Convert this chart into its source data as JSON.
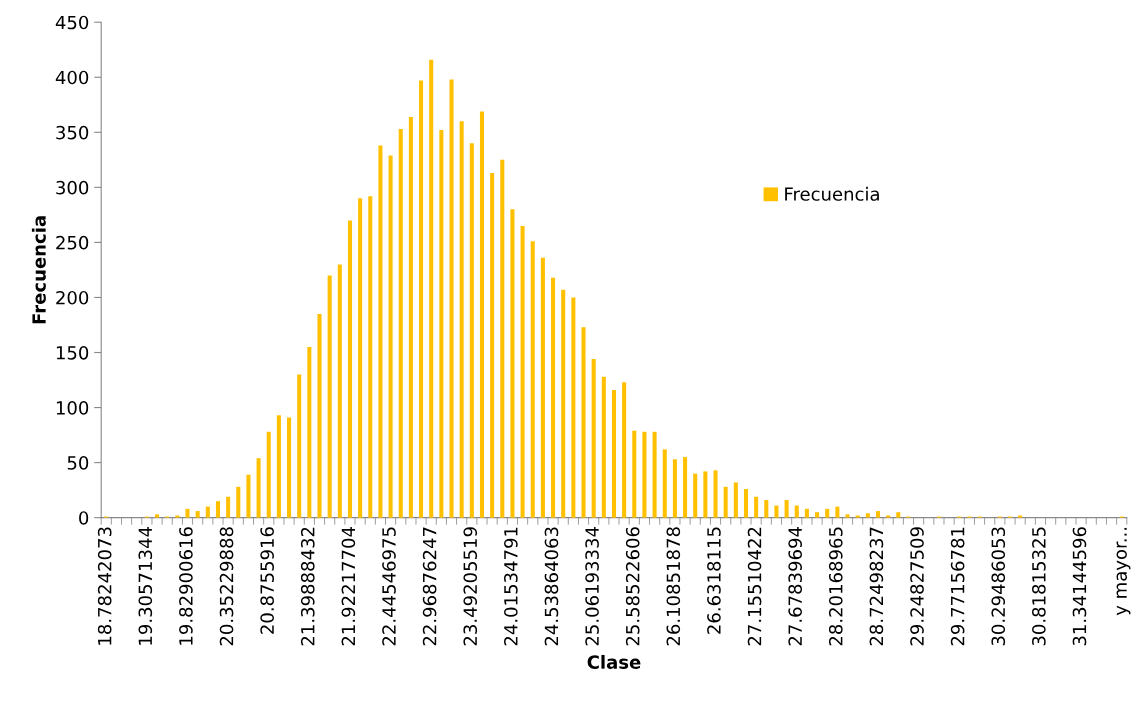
{
  "chart_data": {
    "type": "bar",
    "xlabel": "Clase",
    "ylabel": "Frecuencia",
    "categories": [
      "18.78242073",
      null,
      null,
      null,
      "19.30571344",
      null,
      null,
      null,
      "19.82900616",
      null,
      null,
      null,
      "20.35229888",
      null,
      null,
      null,
      "20.8755916",
      null,
      null,
      null,
      "21.39888432",
      null,
      null,
      null,
      "21.92217704",
      null,
      null,
      null,
      "22.44546975",
      null,
      null,
      null,
      "22.96876247",
      null,
      null,
      null,
      "23.49205519",
      null,
      null,
      null,
      "24.01534791",
      null,
      null,
      null,
      "24.53864063",
      null,
      null,
      null,
      "25.06193334",
      null,
      null,
      null,
      "25.58522606",
      null,
      null,
      null,
      "26.10851878",
      null,
      null,
      null,
      "26.6318115",
      null,
      null,
      null,
      "27.15510422",
      null,
      null,
      null,
      "27.67839694",
      null,
      null,
      null,
      "28.20168965",
      null,
      null,
      null,
      "28.72498237",
      null,
      null,
      null,
      "29.24827509",
      null,
      null,
      null,
      "29.77156781",
      null,
      null,
      null,
      "30.29486053",
      null,
      null,
      null,
      "30.81815325",
      null,
      null,
      null,
      "31.34144596",
      null,
      null,
      null,
      "y mayor..."
    ],
    "series": [
      {
        "name": "Frecuencia",
        "color": "#ffc000",
        "values": [
          1,
          0,
          0,
          0,
          1,
          3,
          1,
          2,
          8,
          6,
          10,
          15,
          19,
          28,
          39,
          54,
          78,
          93,
          91,
          130,
          155,
          185,
          220,
          230,
          270,
          290,
          292,
          338,
          329,
          353,
          364,
          397,
          416,
          352,
          398,
          360,
          340,
          369,
          313,
          325,
          280,
          265,
          251,
          236,
          218,
          207,
          200,
          173,
          144,
          128,
          116,
          123,
          79,
          78,
          78,
          62,
          53,
          55,
          40,
          42,
          43,
          28,
          32,
          26,
          19,
          16,
          11,
          16,
          11,
          8,
          5,
          8,
          10,
          3,
          2,
          4,
          6,
          2,
          5,
          1,
          0,
          0,
          1,
          0,
          1,
          1,
          1,
          0,
          1,
          1,
          2,
          0,
          0,
          0,
          0,
          0,
          0,
          0,
          0,
          0,
          1
        ]
      }
    ],
    "ylim": [
      0,
      450
    ],
    "yticks": [
      0,
      50,
      100,
      150,
      200,
      250,
      300,
      350,
      400,
      450
    ],
    "grid": false,
    "legend": "right"
  }
}
